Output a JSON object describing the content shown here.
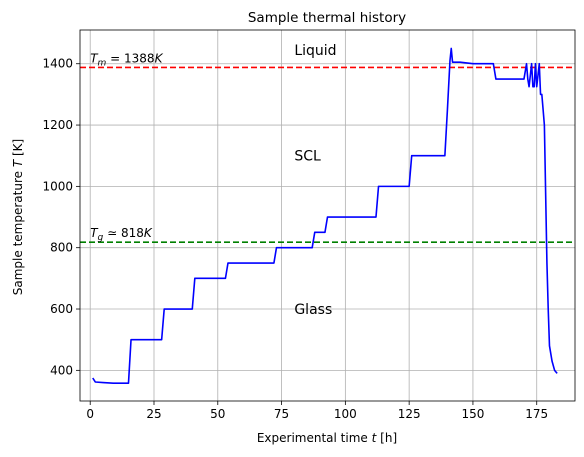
{
  "chart_data": {
    "type": "line",
    "title": "Sample thermal history",
    "xlabel": "Experimental time",
    "xlabel_var": "t",
    "xlabel_unit": "[h]",
    "ylabel": "Sample temperature",
    "ylabel_var": "T",
    "ylabel_unit": "[K]",
    "xlim": [
      -4,
      190
    ],
    "ylim": [
      300,
      1510
    ],
    "xticks": [
      0,
      25,
      50,
      75,
      100,
      125,
      150,
      175
    ],
    "yticks": [
      400,
      600,
      800,
      1000,
      1200,
      1400
    ],
    "grid": true,
    "series": [
      {
        "color": "#0000ff",
        "x": [
          1,
          2,
          5,
          9,
          13,
          15,
          16,
          28,
          29,
          40,
          41,
          53,
          54,
          72,
          73,
          87,
          88,
          92,
          93,
          112,
          113,
          125,
          126,
          139,
          140,
          141,
          141.5,
          142,
          145,
          150,
          158,
          159,
          170,
          171,
          171.5,
          172,
          173,
          173.5,
          174,
          174.5,
          175,
          176,
          176.5,
          177,
          177.5,
          178,
          179,
          179.5,
          180,
          181,
          182,
          183
        ],
        "y": [
          375,
          362,
          360,
          358,
          358,
          358,
          500,
          500,
          600,
          600,
          700,
          700,
          750,
          750,
          800,
          800,
          850,
          850,
          900,
          900,
          1000,
          1000,
          1100,
          1100,
          1250,
          1410,
          1450,
          1405,
          1405,
          1400,
          1400,
          1350,
          1350,
          1400,
          1350,
          1325,
          1400,
          1325,
          1325,
          1400,
          1325,
          1400,
          1300,
          1300,
          1250,
          1200,
          750,
          600,
          480,
          430,
          400,
          390
        ]
      }
    ],
    "reference_lines": [
      {
        "y": 1388,
        "color": "#ff0000",
        "style": "dashed",
        "label_sym": "T",
        "label_sub": "m",
        "label_rel": " = 1388",
        "label_unit": "K"
      },
      {
        "y": 818,
        "color": "#008000",
        "style": "dashed",
        "label_sym": "T",
        "label_sub": "g",
        "label_rel": " ≃ 818",
        "label_unit": "K"
      }
    ],
    "annotations": [
      {
        "text": "Liquid",
        "x": 80,
        "y": 1445
      },
      {
        "text": "SCL",
        "x": 80,
        "y": 1100
      },
      {
        "text": "Glass",
        "x": 80,
        "y": 600
      }
    ]
  }
}
